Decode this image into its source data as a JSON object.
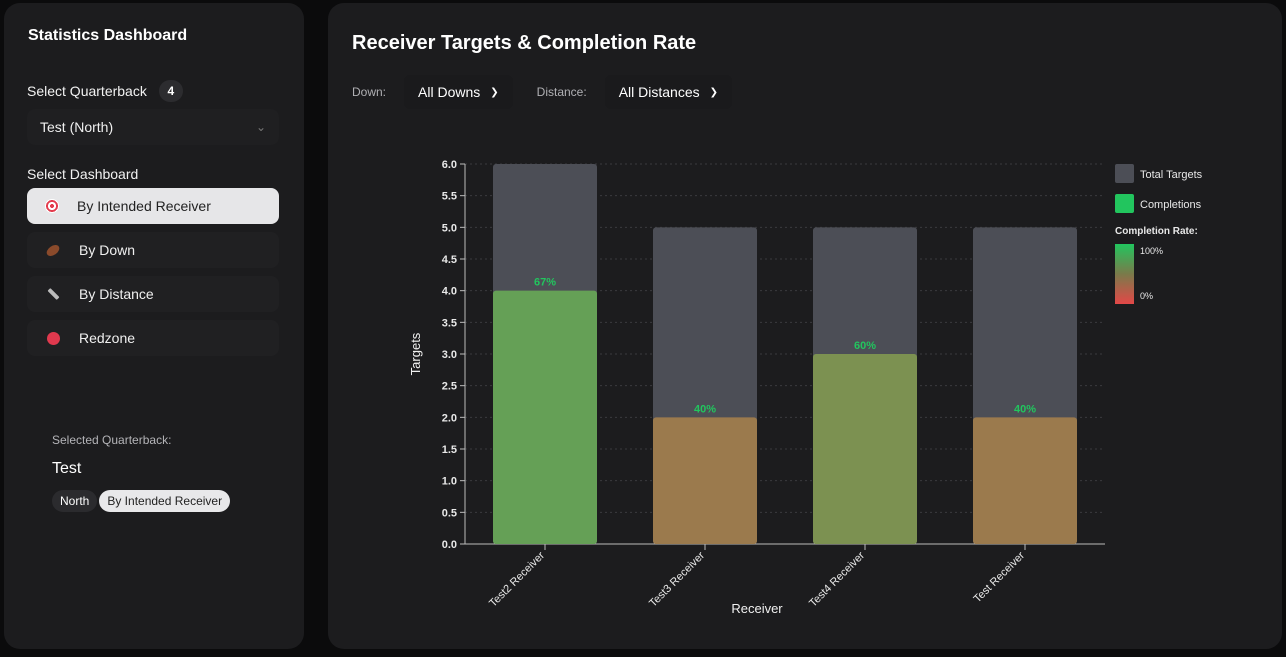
{
  "sidebar": {
    "title": "Statistics Dashboard",
    "quarterback_label": "Select Quarterback",
    "quarterback_count": "4",
    "quarterback_value": "Test (North)",
    "dashboard_label": "Select Dashboard",
    "items": [
      {
        "label": "By Intended Receiver",
        "icon": "target-icon",
        "active": true
      },
      {
        "label": "By Down",
        "icon": "football-icon",
        "active": false
      },
      {
        "label": "By Distance",
        "icon": "ruler-icon",
        "active": false
      },
      {
        "label": "Redzone",
        "icon": "red-circle-icon",
        "active": false
      }
    ],
    "selected_label": "Selected Quarterback:",
    "selected_name": "Test",
    "tags": [
      "North",
      "By Intended Receiver"
    ]
  },
  "main": {
    "title": "Receiver Targets & Completion Rate",
    "down_label": "Down:",
    "down_value": "All Downs",
    "distance_label": "Distance:",
    "distance_value": "All Distances"
  },
  "chart_data": {
    "type": "bar",
    "categories": [
      "Test2 Receiver",
      "Test3 Receiver",
      "Test4 Receiver",
      "Test Receiver"
    ],
    "series": [
      {
        "name": "Total Targets",
        "values": [
          6,
          5,
          5,
          5
        ],
        "color": "#4c4e56"
      },
      {
        "name": "Completions",
        "values": [
          4,
          2,
          3,
          2
        ],
        "color": "#22c55e"
      }
    ],
    "bar_labels": [
      "67%",
      "40%",
      "60%",
      "40%"
    ],
    "bar_colors": [
      "#65a056",
      "#9b7a4d",
      "#7c9151",
      "#9b7a4d"
    ],
    "xlabel": "Receiver",
    "ylabel": "Targets",
    "ylim": [
      0,
      6
    ],
    "yticks": [
      "0.0",
      "0.5",
      "1.0",
      "1.5",
      "2.0",
      "2.5",
      "3.0",
      "3.5",
      "4.0",
      "4.5",
      "5.0",
      "5.5",
      "6.0"
    ],
    "grid": true,
    "legend": {
      "placement": "right",
      "items": [
        "Total Targets",
        "Completions"
      ],
      "gradient_title": "Completion Rate:",
      "gradient_high": "100%",
      "gradient_low": "0%"
    }
  }
}
